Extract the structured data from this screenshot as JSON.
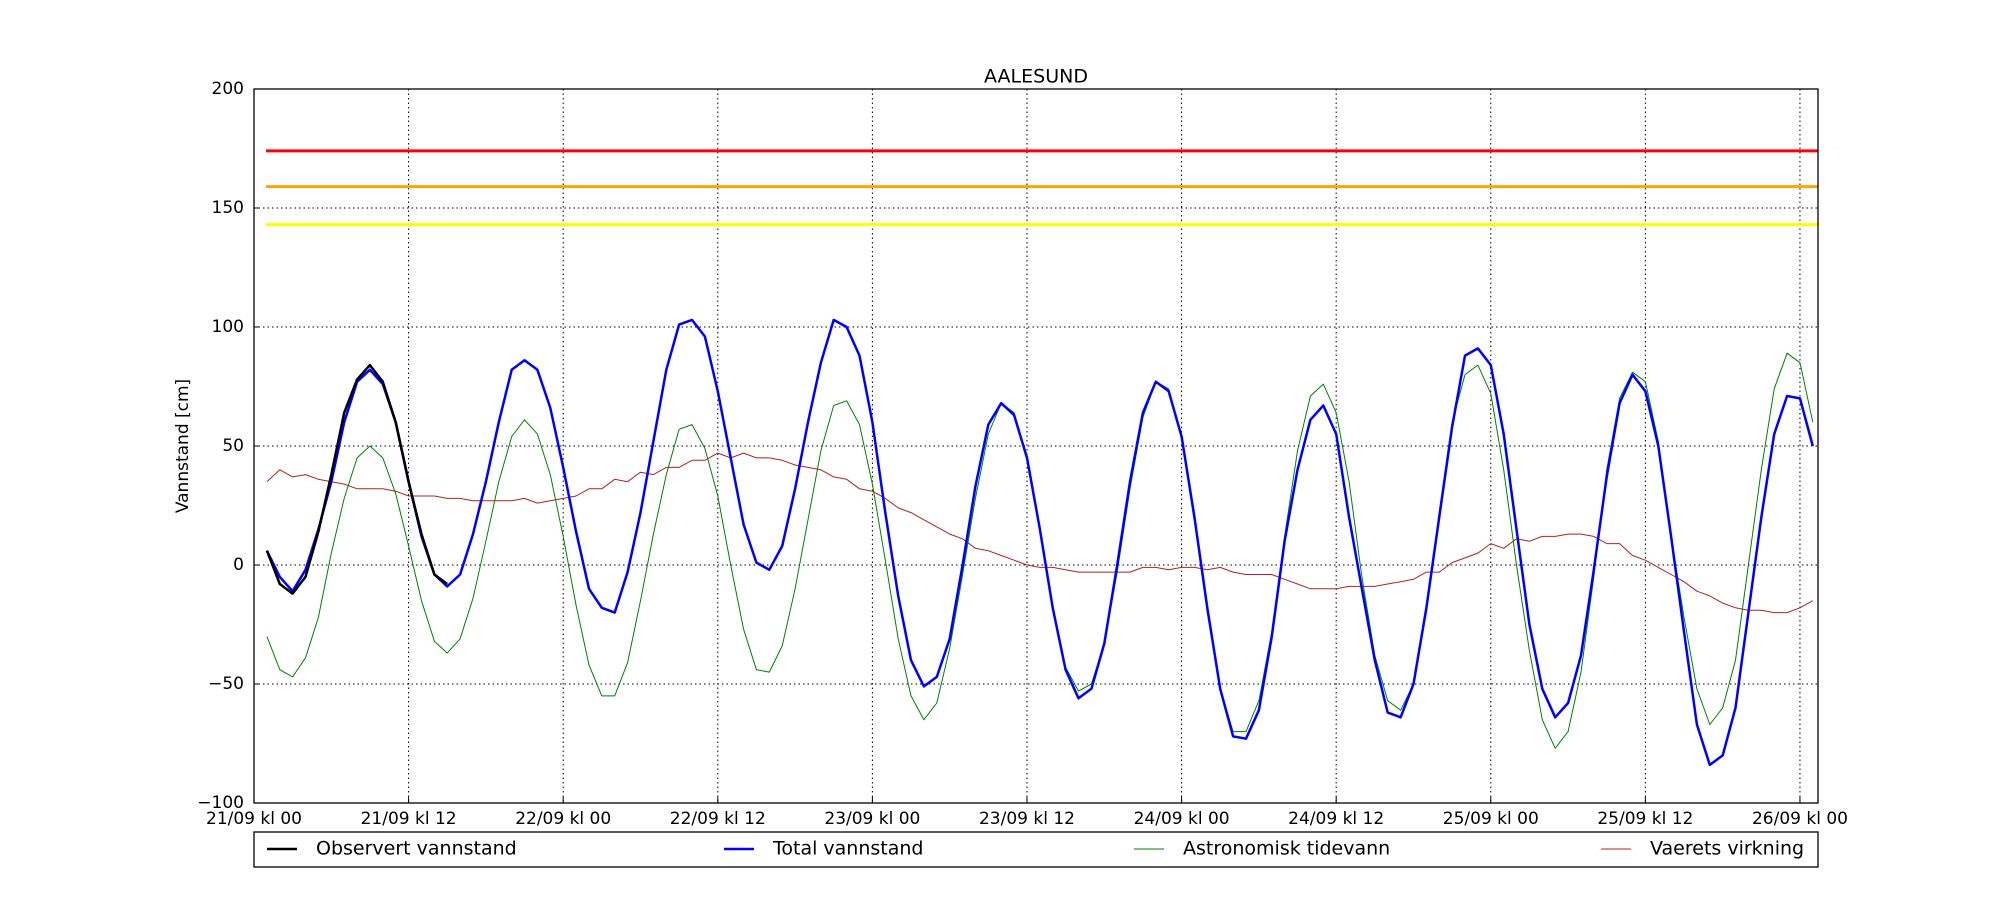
{
  "chart_data": {
    "type": "line",
    "title": "AALESUND",
    "y_label": "Vannstand [cm]",
    "x": [
      1,
      2,
      3,
      4,
      5,
      6,
      7,
      8,
      9,
      10,
      11,
      12,
      13,
      14,
      15,
      16,
      17,
      18,
      19,
      20,
      21,
      22,
      23,
      24,
      25,
      26,
      27,
      28,
      29,
      30,
      31,
      32,
      33,
      34,
      35,
      36,
      37,
      38,
      39,
      40,
      41,
      42,
      43,
      44,
      45,
      46,
      47,
      48,
      49,
      50,
      51,
      52,
      53,
      54,
      55,
      56,
      57,
      58,
      59,
      60,
      61,
      62,
      63,
      64,
      65,
      66,
      67,
      68,
      69,
      70,
      71,
      72,
      73,
      74,
      75,
      76,
      77,
      78,
      79,
      80,
      81,
      82,
      83,
      84,
      85,
      86,
      87,
      88,
      89,
      90,
      91,
      92,
      93,
      94,
      95,
      96,
      97,
      98,
      99,
      100,
      101,
      102,
      103,
      104,
      105,
      106,
      107,
      108,
      109,
      110,
      111,
      112,
      113,
      114,
      115,
      116,
      117,
      118,
      119,
      120,
      121
    ],
    "series": [
      {
        "name": "Observert vannstand",
        "color": "#000000",
        "width": 2.5,
        "values": [
          6,
          -8,
          -12,
          -5,
          14,
          38,
          64,
          78,
          84,
          77,
          60,
          35,
          13,
          -4,
          -8,
          null,
          null,
          null,
          null,
          null,
          null,
          null,
          null,
          null,
          null,
          null,
          null,
          null,
          null,
          null,
          null,
          null,
          null,
          null,
          null,
          null,
          null,
          null,
          null,
          null,
          null,
          null,
          null,
          null,
          null,
          null,
          null,
          null,
          null,
          null,
          null,
          null,
          null,
          null,
          null,
          null,
          null,
          null,
          null,
          null,
          null,
          null,
          null,
          null,
          null,
          null,
          null,
          null,
          null,
          null,
          null,
          null,
          null,
          null,
          null,
          null,
          null,
          null,
          null,
          null,
          null,
          null,
          null,
          null,
          null,
          null,
          null,
          null,
          null,
          null,
          null,
          null,
          null,
          null,
          null,
          null,
          null,
          null,
          null,
          null,
          null,
          null,
          null,
          null,
          null,
          null,
          null,
          null,
          null,
          null,
          null,
          null,
          null,
          null,
          null,
          null,
          null,
          null,
          null,
          null,
          null
        ]
      },
      {
        "name": "Total vannstand",
        "color": "#0000ff",
        "width": 2.5,
        "values": [
          6,
          -5,
          -11,
          -2,
          15,
          35,
          60,
          77,
          82,
          76,
          60,
          35,
          12,
          -4,
          -9,
          -4,
          13,
          35,
          60,
          82,
          86,
          82,
          66,
          41,
          14,
          -10,
          -18,
          -20,
          -3,
          22,
          52,
          82,
          101,
          103,
          96,
          73,
          45,
          17,
          1,
          -2,
          8,
          32,
          60,
          85,
          103,
          100,
          88,
          60,
          22,
          -13,
          -40,
          -51,
          -47,
          -31,
          0,
          33,
          59,
          68,
          63,
          45,
          15,
          -18,
          -44,
          -56,
          -52,
          -33,
          0,
          35,
          64,
          77,
          73,
          54,
          20,
          -18,
          -52,
          -72,
          -73,
          -61,
          -30,
          10,
          40,
          61,
          67,
          55,
          20,
          -10,
          -40,
          -62,
          -64,
          -50,
          -18,
          20,
          58,
          88,
          91,
          84,
          55,
          15,
          -25,
          -52,
          -64,
          -58,
          -38,
          -2,
          37,
          68,
          80,
          73,
          50,
          12,
          -28,
          -67,
          -84,
          -80,
          -60,
          -20,
          20,
          55,
          71,
          70,
          50
        ]
      },
      {
        "name": "Astronomisk tidevann",
        "color": "#008000",
        "width": 1,
        "values": [
          -30,
          -44,
          -47,
          -39,
          -22,
          5,
          28,
          45,
          50,
          45,
          30,
          8,
          -15,
          -32,
          -37,
          -31,
          -14,
          10,
          35,
          54,
          61,
          55,
          38,
          12,
          -17,
          -42,
          -55,
          -55,
          -41,
          -15,
          13,
          38,
          57,
          59,
          49,
          29,
          0,
          -27,
          -44,
          -45,
          -34,
          -10,
          19,
          48,
          67,
          69,
          59,
          34,
          2,
          -31,
          -55,
          -65,
          -58,
          -35,
          -4,
          28,
          55,
          68,
          64,
          45,
          14,
          -17,
          -43,
          -53,
          -50,
          -33,
          -3,
          32,
          62,
          77,
          74,
          53,
          18,
          -20,
          -52,
          -70,
          -70,
          -57,
          -28,
          12,
          48,
          71,
          76,
          64,
          35,
          -5,
          -38,
          -57,
          -61,
          -50,
          -20,
          22,
          60,
          80,
          84,
          72,
          40,
          0,
          -36,
          -65,
          -77,
          -70,
          -45,
          -5,
          40,
          70,
          81,
          77,
          52,
          12,
          -22,
          -52,
          -67,
          -60,
          -40,
          0,
          40,
          74,
          89,
          85,
          60
        ]
      },
      {
        "name": "Vaerets virkning",
        "color": "#b22222",
        "width": 1,
        "values": [
          35,
          40,
          37,
          38,
          36,
          35,
          34,
          32,
          32,
          32,
          31,
          29,
          29,
          29,
          28,
          28,
          27,
          27,
          27,
          27,
          28,
          26,
          27,
          28,
          29,
          32,
          32,
          36,
          35,
          39,
          38,
          41,
          41,
          44,
          44,
          47,
          45,
          47,
          45,
          45,
          44,
          42,
          41,
          40,
          37,
          36,
          32,
          31,
          28,
          24,
          22,
          19,
          16,
          13,
          11,
          7,
          6,
          4,
          2,
          0,
          -1,
          -1,
          -2,
          -3,
          -3,
          -3,
          -3,
          -3,
          -1,
          -1,
          -2,
          -1,
          -1,
          -2,
          -1,
          -3,
          -4,
          -4,
          -4,
          -6,
          -8,
          -10,
          -10,
          -10,
          -9,
          -9,
          -9,
          -8,
          -7,
          -6,
          -3,
          -3,
          1,
          3,
          5,
          9,
          7,
          11,
          10,
          12,
          12,
          13,
          13,
          12,
          9,
          9,
          4,
          2,
          -1,
          -4,
          -7,
          -11,
          -13,
          -16,
          -18,
          -19,
          -19,
          -20,
          -20,
          -18,
          -15
        ]
      }
    ],
    "threshold_lines": [
      {
        "value": 174,
        "color": "#ff0000"
      },
      {
        "value": 159,
        "color": "#ffa500"
      },
      {
        "value": 143,
        "color": "#ffff00"
      }
    ],
    "xlim": [
      0,
      121.4
    ],
    "xticks": [
      {
        "value": 0,
        "label": "21/09 kl 00"
      },
      {
        "value": 12,
        "label": "21/09 kl 12"
      },
      {
        "value": 24,
        "label": "22/09 kl 00"
      },
      {
        "value": 36,
        "label": "22/09 kl 12"
      },
      {
        "value": 48,
        "label": "23/09 kl 00"
      },
      {
        "value": 60,
        "label": "23/09 kl 12"
      },
      {
        "value": 72,
        "label": "24/09 kl 00"
      },
      {
        "value": 84,
        "label": "24/09 kl 12"
      },
      {
        "value": 96,
        "label": "25/09 kl 00"
      },
      {
        "value": 108,
        "label": "25/09 kl 12"
      },
      {
        "value": 120,
        "label": "26/09 kl 00"
      }
    ],
    "ylim": [
      -100,
      200
    ],
    "yticks": [
      {
        "value": -100,
        "label": "−100"
      },
      {
        "value": -50,
        "label": "−50"
      },
      0,
      50,
      100,
      150,
      200
    ],
    "grid": true,
    "legend": "below"
  }
}
